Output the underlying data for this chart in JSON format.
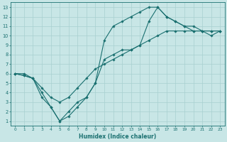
{
  "title": "",
  "xlabel": "Humidex (Indice chaleur)",
  "background_color": "#c8e6e6",
  "grid_color": "#a8d0d0",
  "line_color": "#1a7070",
  "xlim": [
    -0.5,
    23.5
  ],
  "ylim": [
    0.5,
    13.5
  ],
  "xticks": [
    0,
    1,
    2,
    3,
    4,
    5,
    6,
    7,
    8,
    9,
    10,
    11,
    12,
    13,
    14,
    15,
    16,
    17,
    18,
    19,
    20,
    21,
    22,
    23
  ],
  "yticks": [
    1,
    2,
    3,
    4,
    5,
    6,
    7,
    8,
    9,
    10,
    11,
    12,
    13
  ],
  "line1_x": [
    0,
    1,
    2,
    3,
    4,
    5,
    6,
    7,
    8,
    9,
    10,
    11,
    12,
    13,
    14,
    15,
    16,
    17,
    18,
    19,
    20,
    21,
    22,
    23
  ],
  "line1_y": [
    6.0,
    5.8,
    5.5,
    4.5,
    3.5,
    3.0,
    3.5,
    4.5,
    5.5,
    6.5,
    7.0,
    7.5,
    8.0,
    8.5,
    9.0,
    9.5,
    10.0,
    10.5,
    10.5,
    10.5,
    10.5,
    10.5,
    10.5,
    10.5
  ],
  "line2_x": [
    0,
    1,
    2,
    3,
    4,
    5,
    6,
    7,
    8,
    9,
    10,
    11,
    12,
    13,
    14,
    15,
    16,
    17,
    18,
    19,
    20,
    21,
    22,
    23
  ],
  "line2_y": [
    6.0,
    6.0,
    5.5,
    3.5,
    2.5,
    1.0,
    1.5,
    2.5,
    3.5,
    5.0,
    9.5,
    11.0,
    11.5,
    12.0,
    12.5,
    13.0,
    13.0,
    12.0,
    11.5,
    11.0,
    11.0,
    10.5,
    10.5,
    10.5
  ],
  "line3_x": [
    0,
    1,
    2,
    3,
    4,
    5,
    6,
    7,
    8,
    9,
    10,
    11,
    12,
    13,
    14,
    15,
    16,
    17,
    18,
    19,
    20,
    21,
    22,
    23
  ],
  "line3_y": [
    6.0,
    5.8,
    5.5,
    4.0,
    2.5,
    1.0,
    2.0,
    3.0,
    3.5,
    5.0,
    7.5,
    8.0,
    8.5,
    8.5,
    9.0,
    11.5,
    13.0,
    12.0,
    11.5,
    11.0,
    10.5,
    10.5,
    10.0,
    10.5
  ]
}
